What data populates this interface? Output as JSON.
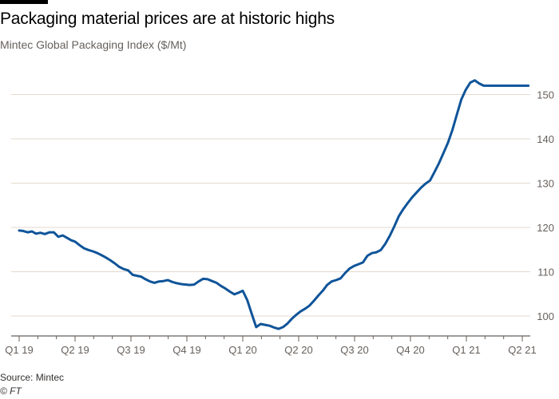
{
  "title": "Packaging material prices are at historic highs",
  "subtitle": "Mintec Global Packaging Index ($/Mt)",
  "source": "Source: Mintec",
  "credit": "© FT",
  "colors": {
    "line": "#0f5499",
    "grid": "#e6d9ce",
    "axis": "#66605c",
    "tick_text": "#66605c"
  },
  "chart_data": {
    "type": "line",
    "title": "Packaging material prices are at historic highs",
    "ylabel": "Mintec Global Packaging Index ($/Mt)",
    "xlabel": "",
    "ylim": [
      96,
      155
    ],
    "yticks": [
      100,
      110,
      120,
      130,
      140,
      150
    ],
    "xlim": [
      0,
      9.3
    ],
    "xticks": [
      {
        "pos": 0,
        "label": "Q1 19"
      },
      {
        "pos": 1,
        "label": "Q2 19"
      },
      {
        "pos": 2,
        "label": "Q3 19"
      },
      {
        "pos": 3,
        "label": "Q4 19"
      },
      {
        "pos": 4,
        "label": "Q1 20"
      },
      {
        "pos": 5,
        "label": "Q2 20"
      },
      {
        "pos": 6,
        "label": "Q3 20"
      },
      {
        "pos": 7,
        "label": "Q4 20"
      },
      {
        "pos": 8,
        "label": "Q1 21"
      },
      {
        "pos": 9,
        "label": "Q2 21"
      }
    ],
    "grid": true,
    "series": [
      {
        "name": "Mintec Global Packaging Index",
        "x": [
          0.0,
          0.07,
          0.15,
          0.23,
          0.3,
          0.38,
          0.46,
          0.54,
          0.62,
          0.7,
          0.78,
          0.85,
          0.93,
          1.0,
          1.08,
          1.16,
          1.24,
          1.32,
          1.4,
          1.48,
          1.55,
          1.63,
          1.71,
          1.79,
          1.87,
          1.95,
          2.03,
          2.1,
          2.18,
          2.26,
          2.34,
          2.42,
          2.5,
          2.58,
          2.66,
          2.74,
          2.82,
          2.9,
          2.98,
          3.05,
          3.13,
          3.21,
          3.29,
          3.37,
          3.45,
          3.53,
          3.61,
          3.69,
          3.77,
          3.85,
          3.93,
          4.0,
          4.08,
          4.16,
          4.24,
          4.32,
          4.4,
          4.48,
          4.56,
          4.64,
          4.72,
          4.8,
          4.88,
          4.96,
          5.03,
          5.11,
          5.19,
          5.27,
          5.35,
          5.43,
          5.51,
          5.59,
          5.67,
          5.75,
          5.83,
          5.91,
          5.99,
          6.07,
          6.15,
          6.23,
          6.31,
          6.39,
          6.47,
          6.55,
          6.63,
          6.71,
          6.79,
          6.87,
          6.95,
          7.03,
          7.11,
          7.19,
          7.27,
          7.35,
          7.43,
          7.51,
          7.59,
          7.67,
          7.75,
          7.83,
          7.91,
          7.99,
          8.07,
          8.15,
          8.23,
          8.31,
          8.39,
          8.47,
          8.55,
          8.63,
          8.71,
          8.79,
          8.87,
          8.95,
          9.03,
          9.11,
          9.19,
          9.27
        ],
        "values": [
          119.3,
          119.2,
          118.9,
          119.1,
          118.6,
          118.8,
          118.5,
          118.9,
          118.9,
          117.9,
          118.2,
          117.7,
          117.1,
          116.8,
          116.0,
          115.3,
          114.9,
          114.6,
          114.2,
          113.7,
          113.2,
          112.6,
          111.9,
          111.1,
          110.6,
          110.3,
          109.3,
          109.1,
          108.9,
          108.3,
          107.8,
          107.5,
          107.8,
          107.9,
          108.1,
          107.7,
          107.4,
          107.2,
          107.1,
          107.0,
          107.1,
          107.8,
          108.4,
          108.3,
          107.9,
          107.5,
          106.8,
          106.2,
          105.5,
          104.9,
          105.3,
          105.7,
          103.6,
          100.5,
          97.5,
          98.2,
          98.0,
          97.8,
          97.4,
          97.1,
          97.5,
          98.3,
          99.4,
          100.3,
          101.0,
          101.6,
          102.3,
          103.4,
          104.6,
          105.7,
          107.0,
          107.8,
          108.1,
          108.5,
          109.7,
          110.7,
          111.3,
          111.7,
          112.1,
          113.6,
          114.2,
          114.4,
          114.9,
          116.3,
          118.1,
          120.2,
          122.5,
          124.1,
          125.5,
          126.8,
          127.9,
          129.0,
          129.9,
          130.6,
          132.5,
          134.5,
          136.8,
          139.1,
          142.0,
          145.5,
          148.9,
          151.1,
          152.7,
          153.2,
          152.5,
          152.0,
          152.0,
          152.0,
          152.0,
          152.0,
          152.0,
          152.0,
          152.0,
          152.0,
          152.0,
          152.0,
          152.0,
          152.0
        ]
      }
    ]
  }
}
